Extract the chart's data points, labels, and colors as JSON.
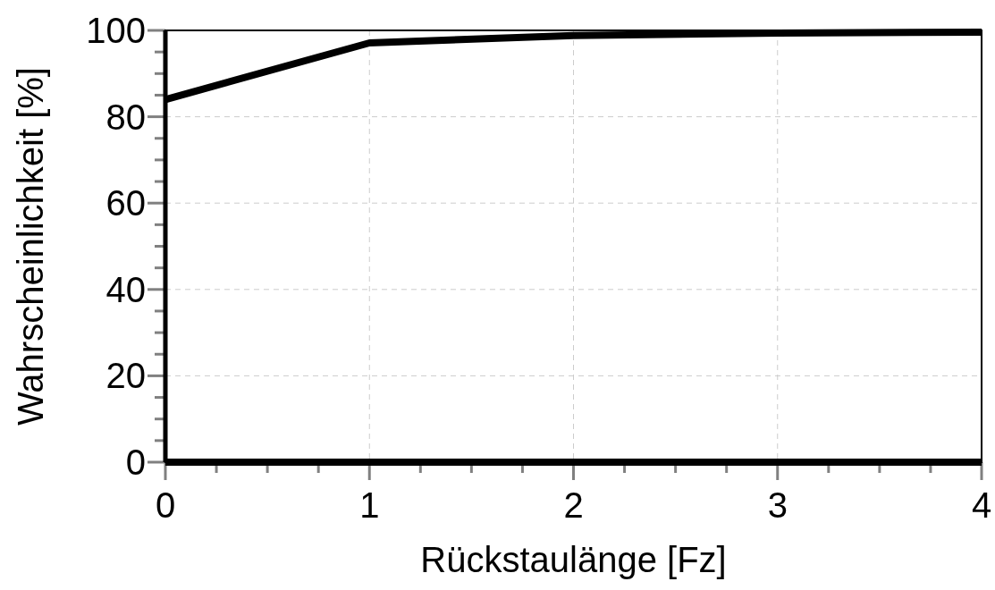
{
  "chart_data": {
    "type": "line",
    "xlabel": "Rückstaulänge [Fz]",
    "ylabel": "Wahrscheinlichkeit [%]",
    "x": [
      0,
      1,
      2,
      3,
      4
    ],
    "series": [
      {
        "color": "#000000",
        "values": [
          84,
          97.1,
          98.8,
          99.4,
          99.6
        ]
      }
    ],
    "xlim": [
      0,
      4
    ],
    "ylim": [
      0,
      100
    ],
    "xticks": [
      0,
      {
        "value": 0.25,
        "label": null
      },
      {
        "value": 0.5,
        "label": null
      },
      {
        "value": 0.75,
        "label": null
      },
      1,
      {
        "value": 1.25,
        "label": null
      },
      {
        "value": 1.5,
        "label": null
      },
      {
        "value": 1.75,
        "label": null
      },
      2,
      {
        "value": 2.25,
        "label": null
      },
      {
        "value": 2.5,
        "label": null
      },
      {
        "value": 2.75,
        "label": null
      },
      3,
      {
        "value": 3.25,
        "label": null
      },
      {
        "value": 3.5,
        "label": null
      },
      {
        "value": 3.75,
        "label": null
      },
      4
    ],
    "yticks": [
      0,
      {
        "value": 5,
        "label": null
      },
      {
        "value": 10,
        "label": null
      },
      {
        "value": 15,
        "label": null
      },
      20,
      {
        "value": 25,
        "label": null
      },
      {
        "value": 30,
        "label": null
      },
      {
        "value": 35,
        "label": null
      },
      40,
      {
        "value": 45,
        "label": null
      },
      {
        "value": 50,
        "label": null
      },
      {
        "value": 55,
        "label": null
      },
      60,
      {
        "value": 65,
        "label": null
      },
      {
        "value": 70,
        "label": null
      },
      {
        "value": 75,
        "label": null
      },
      80,
      {
        "value": 85,
        "label": null
      },
      {
        "value": 90,
        "label": null
      },
      {
        "value": 95,
        "label": null
      },
      100
    ],
    "grid": true,
    "marker": "none",
    "line_style": "solid"
  }
}
